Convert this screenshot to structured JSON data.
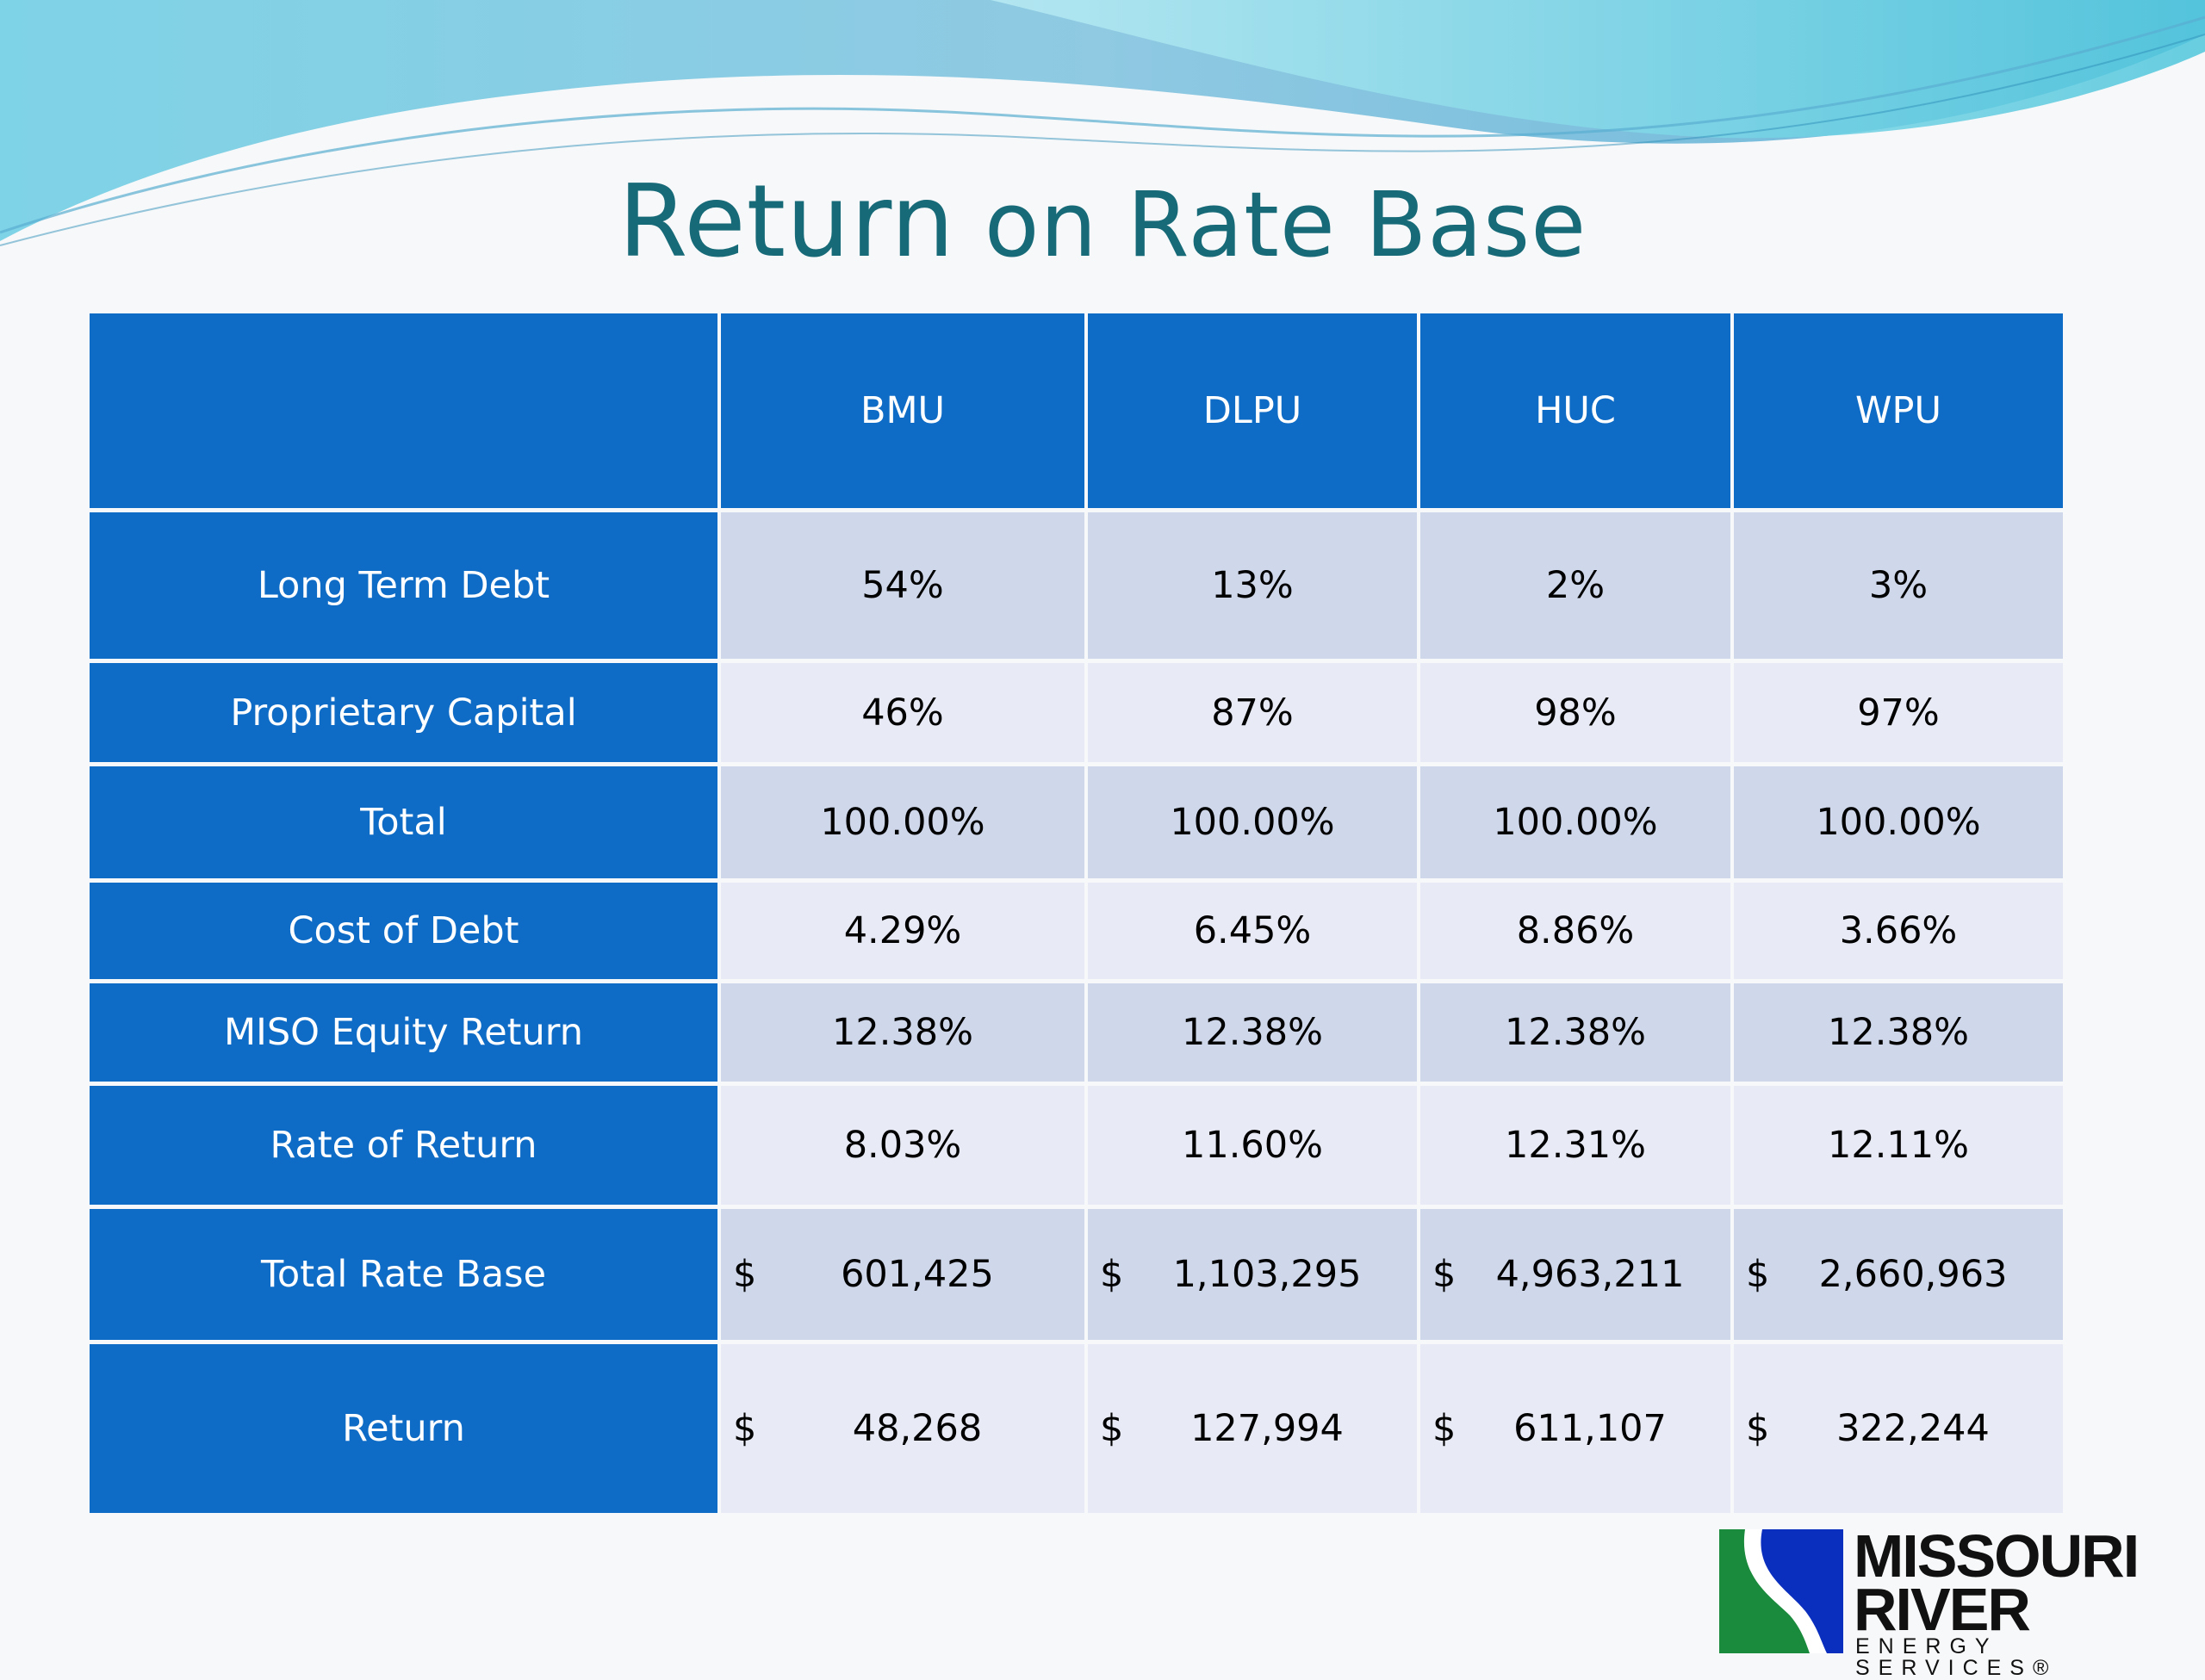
{
  "title": {
    "part1": "Return",
    "part2": "on Rate Base"
  },
  "columns": [
    "BMU",
    "DLPU",
    "HUC",
    "WPU"
  ],
  "rows": [
    {
      "label": "Long Term Debt",
      "values": [
        "54%",
        "13%",
        "2%",
        "3%"
      ]
    },
    {
      "label": "Proprietary Capital",
      "values": [
        "46%",
        "87%",
        "98%",
        "97%"
      ]
    },
    {
      "label": "Total",
      "values": [
        "100.00%",
        "100.00%",
        "100.00%",
        "100.00%"
      ]
    },
    {
      "label": "Cost of Debt",
      "values": [
        "4.29%",
        "6.45%",
        "8.86%",
        "3.66%"
      ]
    },
    {
      "label": "MISO Equity Return",
      "values": [
        "12.38%",
        "12.38%",
        "12.38%",
        "12.38%"
      ]
    },
    {
      "label": "Rate of Return",
      "values": [
        "8.03%",
        "11.60%",
        "12.31%",
        "12.11%"
      ]
    },
    {
      "label": "Total Rate Base",
      "currency": "$",
      "values": [
        "601,425",
        "1,103,295",
        "4,963,211",
        "2,660,963"
      ]
    },
    {
      "label": "Return",
      "currency": "$",
      "values": [
        "48,268",
        "127,994",
        "611,107",
        "322,244"
      ]
    }
  ],
  "logo": {
    "line1": "MISSOURI",
    "line2": "RIVER",
    "line3": "ENERGY SERVICES®"
  },
  "colors": {
    "header": "#0f6cc6",
    "title": "#176a78",
    "row_shade_dark": "#cfd7ea",
    "row_shade_light": "#e8ebf5"
  }
}
